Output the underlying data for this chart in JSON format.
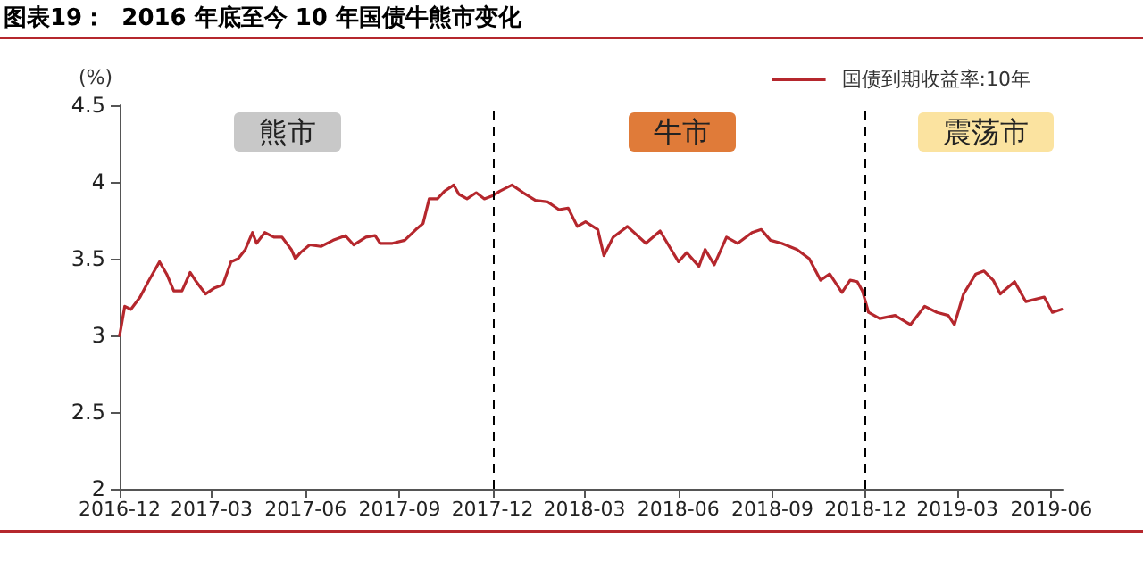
{
  "chart_data": {
    "type": "line",
    "title": "图表19：  2016 年底至今 10 年国债牛熊市变化",
    "ylabel": "(%)",
    "annotations": [
      "熊市",
      "牛市",
      "震荡市"
    ],
    "xlim": [
      "2016-12-01",
      "2019-06-12"
    ],
    "xticks": [
      {
        "value": "2016-12-01",
        "label": "2016-12"
      },
      {
        "value": "2017-03-01",
        "label": "2017-03"
      },
      {
        "value": "2017-06-01",
        "label": "2017-06"
      },
      {
        "value": "2017-09-01",
        "label": "2017-09"
      },
      {
        "value": "2017-12-01",
        "label": "2017-12"
      },
      {
        "value": "2018-03-01",
        "label": "2018-03"
      },
      {
        "value": "2018-06-01",
        "label": "2018-06"
      },
      {
        "value": "2018-09-01",
        "label": "2018-09"
      },
      {
        "value": "2018-12-01",
        "label": "2018-12"
      },
      {
        "value": "2019-03-01",
        "label": "2019-03"
      },
      {
        "value": "2019-06-01",
        "label": "2019-06"
      }
    ],
    "ylim": [
      2,
      4.5
    ],
    "yticks": [
      2,
      2.5,
      3,
      3.5,
      4,
      4.5
    ],
    "grid": false,
    "legend": "top right",
    "marker": "none",
    "line_style": "solid",
    "ref_lines": [
      {
        "axis": "x",
        "value": "2017-12-01",
        "color": "#000000",
        "line_style": "dashed"
      },
      {
        "axis": "x",
        "value": "2018-12-01",
        "color": "#000000",
        "line_style": "dashed"
      }
    ],
    "series": [
      {
        "name": "国债到期收益率:10年",
        "color": "#b5272d",
        "x": [
          "2016-12-01",
          "2016-12-06",
          "2016-12-12",
          "2016-12-21",
          "2016-12-29",
          "2017-01-09",
          "2017-01-16",
          "2017-01-23",
          "2017-01-31",
          "2017-02-08",
          "2017-02-14",
          "2017-02-23",
          "2017-03-04",
          "2017-03-12",
          "2017-03-20",
          "2017-03-27",
          "2017-04-03",
          "2017-04-10",
          "2017-04-14",
          "2017-04-22",
          "2017-05-01",
          "2017-05-09",
          "2017-05-18",
          "2017-05-22",
          "2017-05-27",
          "2017-06-05",
          "2017-06-16",
          "2017-06-28",
          "2017-07-10",
          "2017-07-18",
          "2017-07-30",
          "2017-08-08",
          "2017-08-13",
          "2017-08-25",
          "2017-09-06",
          "2017-09-17",
          "2017-09-24",
          "2017-09-30",
          "2017-10-08",
          "2017-10-15",
          "2017-10-24",
          "2017-10-29",
          "2017-11-06",
          "2017-11-15",
          "2017-11-23",
          "2017-12-01",
          "2017-12-08",
          "2017-12-20",
          "2017-12-31",
          "2018-01-12",
          "2018-01-24",
          "2018-02-04",
          "2018-02-13",
          "2018-02-22",
          "2018-03-02",
          "2018-03-14",
          "2018-03-20",
          "2018-03-29",
          "2018-04-12",
          "2018-04-30",
          "2018-05-14",
          "2018-05-23",
          "2018-06-01",
          "2018-06-09",
          "2018-06-21",
          "2018-06-27",
          "2018-07-06",
          "2018-07-18",
          "2018-07-29",
          "2018-08-12",
          "2018-08-21",
          "2018-08-30",
          "2018-09-10",
          "2018-09-25",
          "2018-10-07",
          "2018-10-18",
          "2018-10-27",
          "2018-11-08",
          "2018-11-16",
          "2018-11-23",
          "2018-11-28",
          "2018-12-04",
          "2018-12-15",
          "2018-12-30",
          "2019-01-14",
          "2019-01-28",
          "2019-02-09",
          "2019-02-20",
          "2019-02-26",
          "2019-03-07",
          "2019-03-19",
          "2019-03-27",
          "2019-04-05",
          "2019-04-12",
          "2019-04-26",
          "2019-05-07",
          "2019-05-25",
          "2019-06-02",
          "2019-06-11"
        ],
        "values": [
          3.0,
          3.19,
          3.17,
          3.25,
          3.35,
          3.48,
          3.4,
          3.29,
          3.29,
          3.41,
          3.35,
          3.27,
          3.31,
          3.33,
          3.48,
          3.5,
          3.56,
          3.67,
          3.6,
          3.67,
          3.64,
          3.64,
          3.56,
          3.5,
          3.54,
          3.59,
          3.58,
          3.62,
          3.65,
          3.59,
          3.64,
          3.65,
          3.6,
          3.6,
          3.62,
          3.69,
          3.73,
          3.89,
          3.89,
          3.94,
          3.98,
          3.92,
          3.89,
          3.93,
          3.89,
          3.91,
          3.94,
          3.98,
          3.93,
          3.88,
          3.87,
          3.82,
          3.83,
          3.71,
          3.74,
          3.69,
          3.52,
          3.64,
          3.71,
          3.6,
          3.68,
          3.58,
          3.48,
          3.54,
          3.45,
          3.56,
          3.46,
          3.64,
          3.6,
          3.67,
          3.69,
          3.62,
          3.6,
          3.56,
          3.5,
          3.36,
          3.4,
          3.28,
          3.36,
          3.35,
          3.29,
          3.15,
          3.11,
          3.13,
          3.07,
          3.19,
          3.15,
          3.13,
          3.07,
          3.27,
          3.4,
          3.42,
          3.36,
          3.27,
          3.35,
          3.22,
          3.25,
          3.15,
          3.17
        ]
      }
    ]
  }
}
